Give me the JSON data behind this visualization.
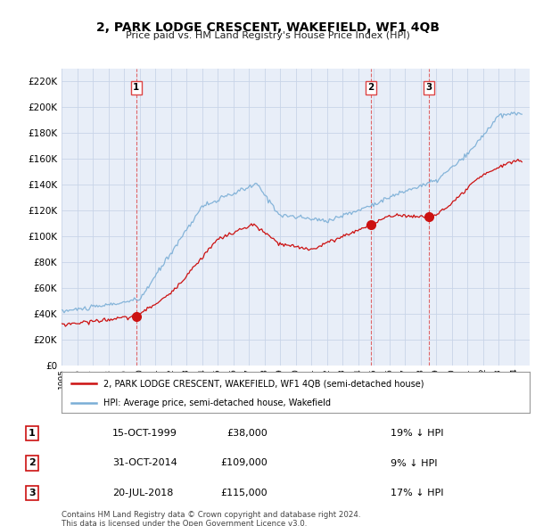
{
  "title": "2, PARK LODGE CRESCENT, WAKEFIELD, WF1 4QB",
  "subtitle": "Price paid vs. HM Land Registry's House Price Index (HPI)",
  "ylim": [
    0,
    230000
  ],
  "yticks": [
    0,
    20000,
    40000,
    60000,
    80000,
    100000,
    120000,
    140000,
    160000,
    180000,
    200000,
    220000
  ],
  "hpi_color": "#7aaed6",
  "price_color": "#cc1111",
  "vline_color": "#dd4444",
  "grid_color": "#c8d4e8",
  "bg_color": "#e8eef8",
  "legend_label_price": "2, PARK LODGE CRESCENT, WAKEFIELD, WF1 4QB (semi-detached house)",
  "legend_label_hpi": "HPI: Average price, semi-detached house, Wakefield",
  "sales": [
    {
      "date_num": 1999.79,
      "price": 38000,
      "label": "1",
      "date_str": "15-OCT-1999",
      "price_str": "£38,000",
      "pct": "19% ↓ HPI"
    },
    {
      "date_num": 2014.83,
      "price": 109000,
      "label": "2",
      "date_str": "31-OCT-2014",
      "price_str": "£109,000",
      "pct": "9% ↓ HPI"
    },
    {
      "date_num": 2018.54,
      "price": 115000,
      "label": "3",
      "date_str": "20-JUL-2018",
      "price_str": "£115,000",
      "pct": "17% ↓ HPI"
    }
  ],
  "footer": "Contains HM Land Registry data © Crown copyright and database right 2024.\nThis data is licensed under the Open Government Licence v3.0.",
  "xstart": 1995.0,
  "xend": 2025.0
}
